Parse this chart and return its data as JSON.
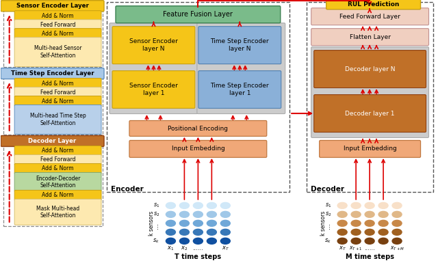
{
  "bg_color": "#ffffff",
  "sensor_enc_label": "Sensor Encoder Layer",
  "timestep_enc_label": "Time Step Encoder Layer",
  "decoder_label": "Decoder Layer",
  "left_boxes_sensor": [
    "Add & Norm",
    "Feed Forward",
    "Add & Norm",
    "Multi-head Sensor\nSelf-Attention"
  ],
  "left_boxes_sensor_colors": [
    "#f5c518",
    "#fde9b0",
    "#f5c518",
    "#fde9b0"
  ],
  "left_boxes_timestep": [
    "Add & Norm",
    "Feed Forward",
    "Add & Norm",
    "Multi-head Time Step\nSelf-Attention"
  ],
  "left_boxes_timestep_colors": [
    "#f5c518",
    "#fde9b0",
    "#f5c518",
    "#b8d0ea"
  ],
  "left_boxes_decoder": [
    "Add & Norm",
    "Feed Forward",
    "Add & Norm",
    "Encoder-Decoder\nSelf-Attention",
    "Add & Norm",
    "Mask Multi-head\nSelf-Attention"
  ],
  "left_boxes_decoder_colors": [
    "#f5c518",
    "#fde9b0",
    "#f5c518",
    "#b8d8a0",
    "#f5c518",
    "#fde9b0"
  ],
  "encoder_label": "Encoder",
  "decoder_main_label": "Decoder",
  "feature_fusion_label": "Feature Fusion Layer",
  "feature_fusion_color": "#7abb8a",
  "positional_encoding_label": "Positional Encoding",
  "positional_encoding_color": "#f0a878",
  "input_embedding_enc_label": "Input Embedding",
  "input_embedding_dec_label": "Input Embedding",
  "input_embedding_color": "#f0a878",
  "sensor_enc_n_label": "Sensor Encoder\nlayer N",
  "sensor_enc_1_label": "Sensor Encoder\nlayer 1",
  "sensor_enc_box_color": "#f5c518",
  "timestep_enc_n_label": "Time Step Encoder\nlayer N",
  "timestep_enc_1_label": "Time Step Encoder\nlayer 1",
  "timestep_enc_box_color": "#8ab0d8",
  "decoder_n_label": "Decoder layer N",
  "decoder_1_label": "Decoder layer 1",
  "decoder_box_color": "#c07028",
  "feed_forward_label": "Feed Forward Layer",
  "feed_forward_color": "#f0cfc0",
  "flatten_label": "Flatten Layer",
  "flatten_color": "#f0cfc0",
  "rul_label": "RUL Prediction",
  "rul_color": "#f5c518",
  "t_label": "T time steps",
  "m_label": "M time steps",
  "arrow_color": "#dd0000",
  "gray_box_color": "#cccccc",
  "blue_dot_colors": [
    "#d0e8f8",
    "#a0c8e8",
    "#70a8d8",
    "#3878b8",
    "#1050a0"
  ],
  "brown_dot_colors": [
    "#f8e0c8",
    "#e0b888",
    "#c88848",
    "#a06020",
    "#784010"
  ]
}
